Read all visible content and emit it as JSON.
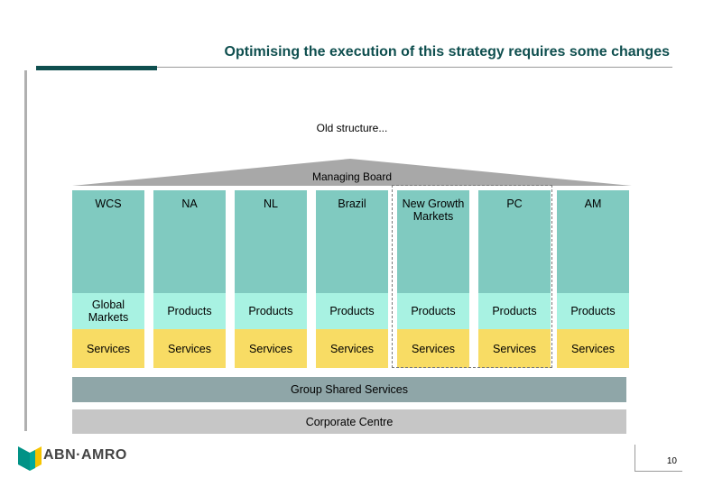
{
  "title": "Optimising the execution of this strategy requires some changes",
  "subtitle": "Old structure...",
  "roof_label": "Managing Board",
  "columns": [
    {
      "name": "WCS",
      "middle": "Global Markets",
      "bottom": "Services"
    },
    {
      "name": "NA",
      "middle": "Products",
      "bottom": "Services"
    },
    {
      "name": "NL",
      "middle": "Products",
      "bottom": "Services"
    },
    {
      "name": "Brazil",
      "middle": "Products",
      "bottom": "Services"
    },
    {
      "name": "New Growth Markets",
      "middle": "Products",
      "bottom": "Services"
    },
    {
      "name": "PC",
      "middle": "Products",
      "bottom": "Services"
    },
    {
      "name": "AM",
      "middle": "Products",
      "bottom": "Services"
    }
  ],
  "group_shared_services": "Group Shared Services",
  "corporate_centre": "Corporate Centre",
  "logo_text": "ABN·AMRO",
  "page_number": "10",
  "colors": {
    "title": "#0f4f4f",
    "roof": "#a8a8a8",
    "column_top": "#80cac0",
    "column_middle": "#a8f2e2",
    "column_bottom": "#f8dc64",
    "group_shared_services": "#8fa6a8",
    "corporate_centre": "#c6c6c6",
    "logo_green": "#009286",
    "logo_yellow": "#f5c400"
  }
}
